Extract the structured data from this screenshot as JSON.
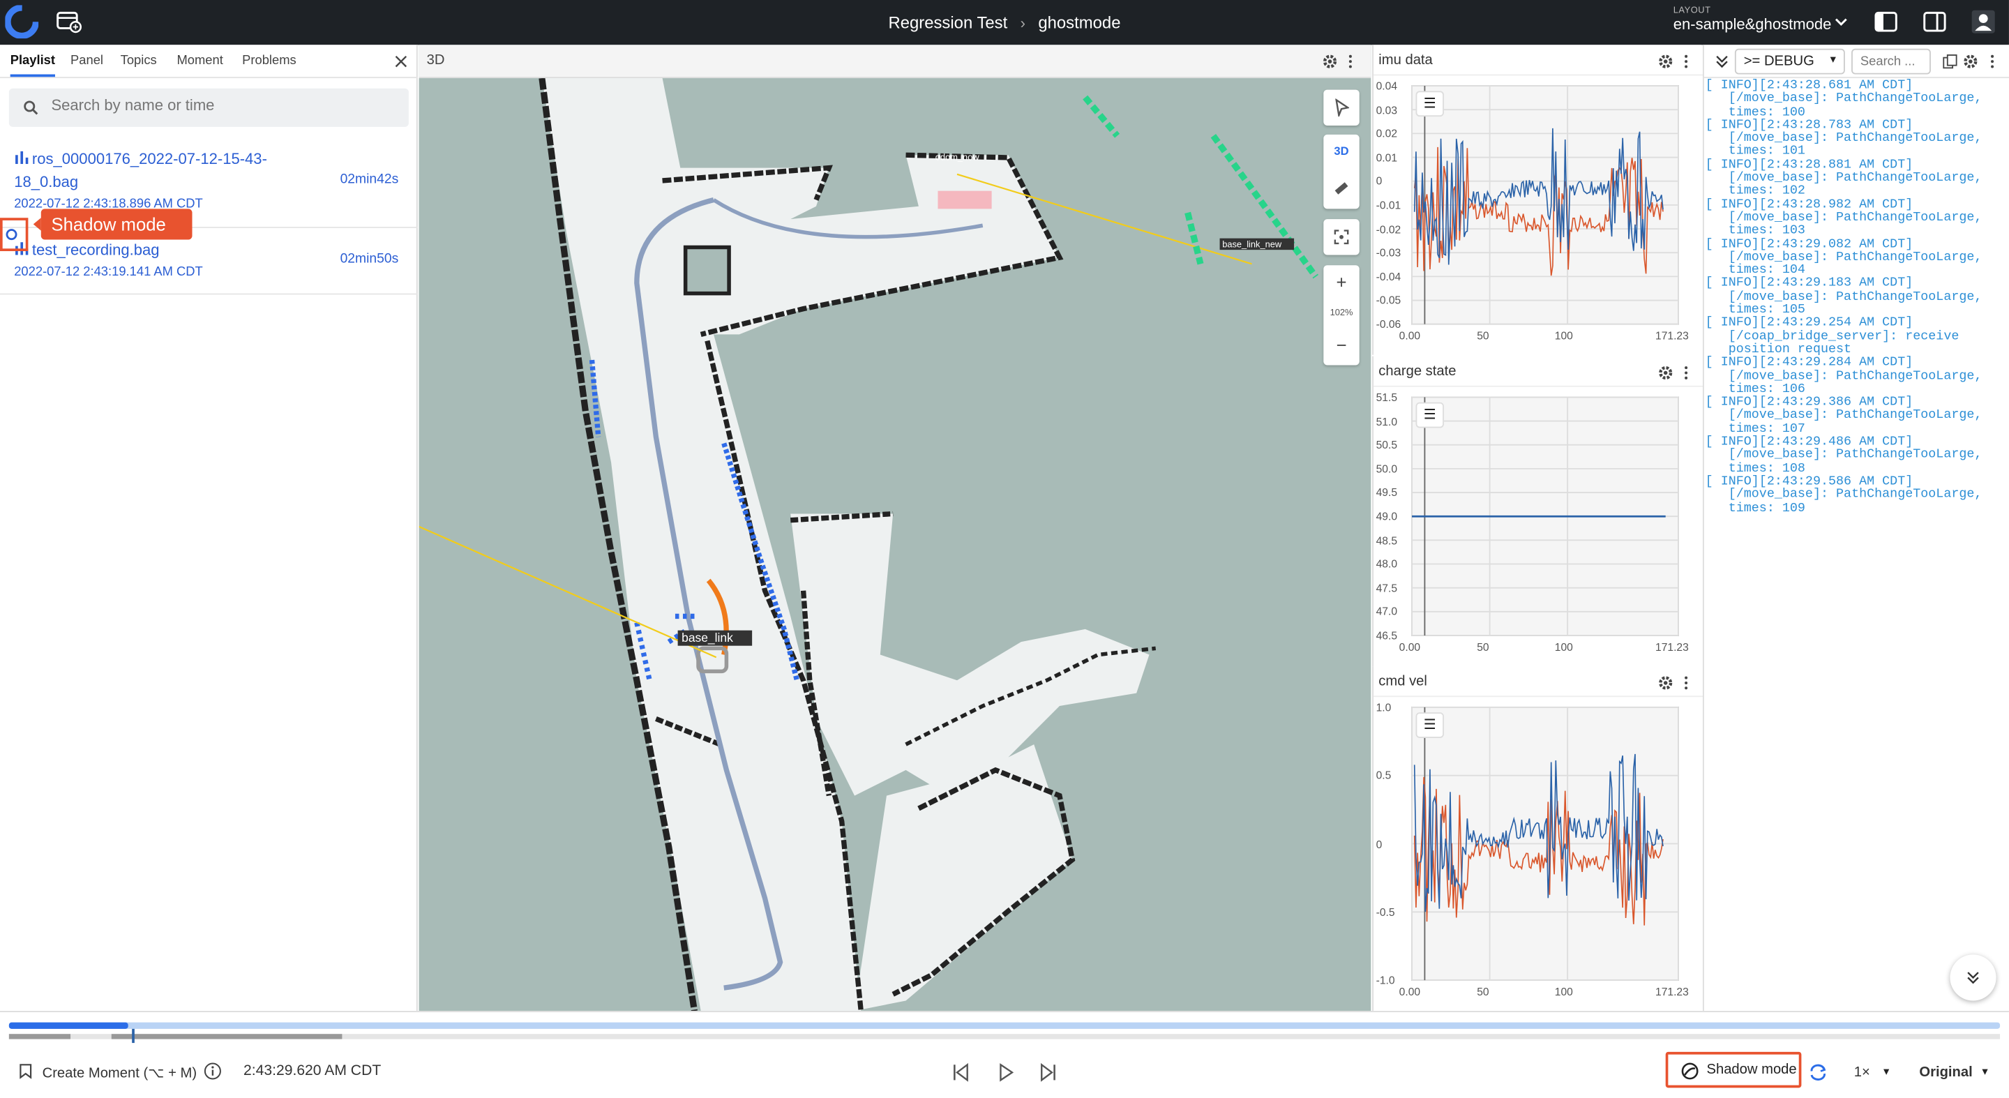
{
  "header": {
    "breadcrumb_parent": "Regression Test",
    "breadcrumb_sep": "›",
    "breadcrumb_current": "ghostmode",
    "layout_label": "LAYOUT",
    "layout_name": "en-sample&ghostmode"
  },
  "left": {
    "tabs": [
      "Playlist",
      "Panel",
      "Topics",
      "Moment",
      "Problems"
    ],
    "search_placeholder": "Search by name or time",
    "items": [
      {
        "name_line1": "ros_00000176_2022-07-12-15-43-",
        "name_line2": "18_0.bag",
        "date": "2022-07-12 2:43:18.896 AM CDT",
        "duration": "02min42s"
      },
      {
        "name_line1": "test_recording.bag",
        "date": "2022-07-12 2:43:19.141 AM CDT",
        "duration": "02min50s"
      }
    ],
    "tooltip": "Shadow mode"
  },
  "panel3d": {
    "title": "3D",
    "mode": "3D",
    "zoom": "102%",
    "labels": {
      "base_link": "base_link",
      "odom": "odom_now",
      "base_link_new": "base_link_new"
    }
  },
  "plots": [
    {
      "title": "imu data",
      "yticks": [
        "0.04",
        "0.03",
        "0.02",
        "0.01",
        "0",
        "-0.01",
        "-0.02",
        "-0.03",
        "-0.04",
        "-0.05",
        "-0.06"
      ],
      "xticks": [
        "0.00",
        "50",
        "100",
        "171.23"
      ]
    },
    {
      "title": "charge state",
      "yticks": [
        "51.5",
        "51.0",
        "50.5",
        "50.0",
        "49.5",
        "49.0",
        "48.5",
        "48.0",
        "47.5",
        "47.0",
        "46.5"
      ],
      "xticks": [
        "0.00",
        "50",
        "100",
        "171.23"
      ],
      "constant": 49.0
    },
    {
      "title": "cmd vel",
      "yticks": [
        "1.0",
        "0.5",
        "0",
        "-0.5",
        "-1.0"
      ],
      "xticks": [
        "0.00",
        "50",
        "100",
        "171.23"
      ]
    }
  ],
  "log": {
    "level": ">= DEBUG",
    "search_placeholder": "Search ...",
    "lines": [
      "[ INFO][2:43:28.681 AM CDT]",
      "   [/move_base]: PathChangeTooLarge,",
      "   times: 100",
      "[ INFO][2:43:28.783 AM CDT]",
      "   [/move_base]: PathChangeTooLarge,",
      "   times: 101",
      "[ INFO][2:43:28.881 AM CDT]",
      "   [/move_base]: PathChangeTooLarge,",
      "   times: 102",
      "[ INFO][2:43:28.982 AM CDT]",
      "   [/move_base]: PathChangeTooLarge,",
      "   times: 103",
      "[ INFO][2:43:29.082 AM CDT]",
      "   [/move_base]: PathChangeTooLarge,",
      "   times: 104",
      "[ INFO][2:43:29.183 AM CDT]",
      "   [/move_base]: PathChangeTooLarge,",
      "   times: 105",
      "[ INFO][2:43:29.254 AM CDT]",
      "   [/coap_bridge_server]: receive",
      "   position request",
      "[ INFO][2:43:29.284 AM CDT]",
      "   [/move_base]: PathChangeTooLarge,",
      "   times: 106",
      "[ INFO][2:43:29.386 AM CDT]",
      "   [/move_base]: PathChangeTooLarge,",
      "   times: 107",
      "[ INFO][2:43:29.486 AM CDT]",
      "   [/move_base]: PathChangeTooLarge,",
      "   times: 108",
      "[ INFO][2:43:29.586 AM CDT]",
      "   [/move_base]: PathChangeTooLarge,",
      "   times: 109"
    ]
  },
  "bottom": {
    "create_moment": "Create Moment (⌥ + M)",
    "timestamp": "2:43:29.620 AM CDT",
    "shadow_mode": "Shadow mode",
    "speed": "1×",
    "quality": "Original",
    "playback_progress": 0.06
  },
  "colors": {
    "accent": "#2b6de8",
    "highlight": "#e8532f",
    "series_blue": "#2a62a8",
    "series_orange": "#d9562b",
    "log_text": "#2d8fd6"
  },
  "icons": [
    "coscene-logo",
    "new-window-icon",
    "chevron-down-icon",
    "sidebar-left-icon",
    "sidebar-right-icon",
    "user-icon",
    "search-icon",
    "close-icon",
    "gear-icon",
    "more-icon",
    "select-icon",
    "ruler-icon",
    "focus-icon",
    "plus-icon",
    "minus-icon",
    "list-icon",
    "collapse-icon",
    "copy-icon",
    "moment-icon",
    "info-icon",
    "skip-back-icon",
    "play-icon",
    "skip-forward-icon",
    "loop-icon",
    "ghost-icon"
  ]
}
